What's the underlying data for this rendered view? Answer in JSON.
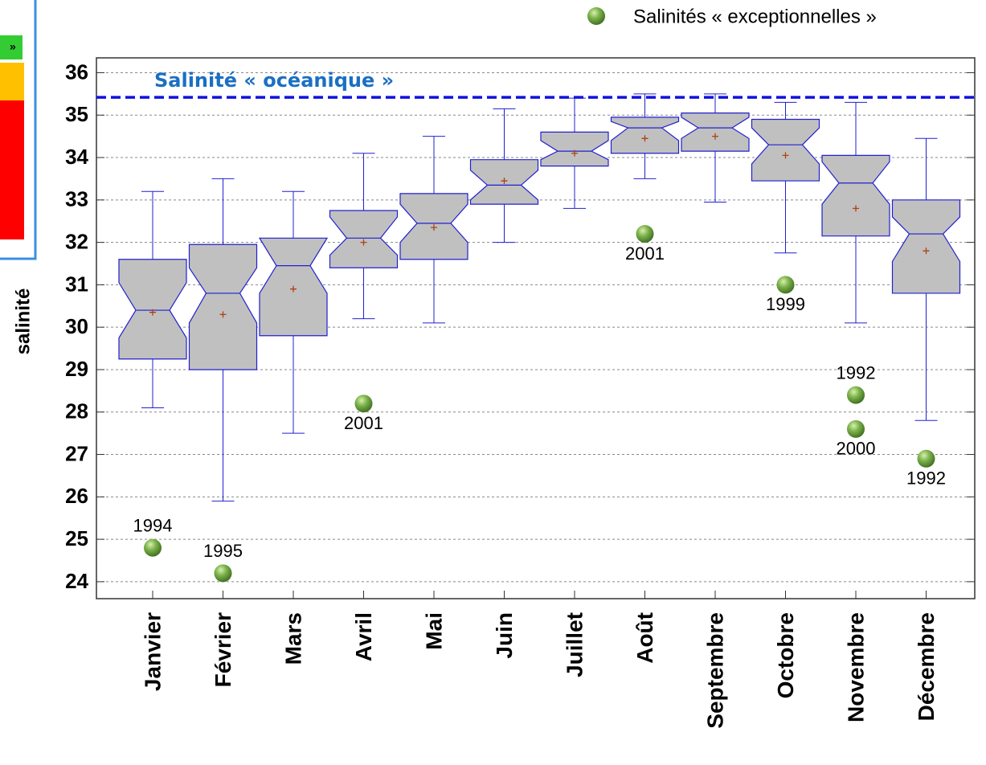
{
  "chart_data": {
    "type": "box",
    "ylabel": "salinité",
    "legend_label": "Salinités « exceptionnelles »",
    "side_panel_text": "»",
    "reference_line": {
      "value": 35.42,
      "label": "Salinité « océanique »",
      "color": "#1010e0"
    },
    "categories": [
      "Janvier",
      "Février",
      "Mars",
      "Avril",
      "Mai",
      "Juin",
      "Juillet",
      "Août",
      "Septembre",
      "Octobre",
      "Novembre",
      "Décembre"
    ],
    "whisker_high": [
      33.2,
      33.5,
      33.2,
      34.1,
      34.5,
      35.15,
      35.4,
      35.5,
      35.5,
      35.3,
      35.3,
      34.45
    ],
    "q3": [
      31.6,
      31.95,
      32.1,
      32.75,
      33.15,
      33.95,
      34.6,
      34.95,
      35.05,
      34.9,
      34.05,
      33.0
    ],
    "notch_high": [
      31.05,
      31.4,
      32.1,
      32.6,
      32.9,
      33.7,
      34.4,
      34.85,
      34.95,
      34.7,
      33.9,
      32.6
    ],
    "median": [
      30.4,
      30.8,
      31.45,
      32.1,
      32.45,
      33.35,
      34.15,
      34.7,
      34.7,
      34.3,
      33.4,
      32.2
    ],
    "notch_low": [
      29.75,
      30.1,
      30.8,
      31.7,
      32.0,
      33.0,
      33.95,
      34.4,
      34.45,
      33.85,
      32.9,
      31.55
    ],
    "q1": [
      29.25,
      29.0,
      29.8,
      31.4,
      31.6,
      32.9,
      33.8,
      34.1,
      34.15,
      33.45,
      32.15,
      30.8
    ],
    "whisker_low": [
      28.1,
      25.9,
      27.5,
      30.2,
      30.1,
      32.0,
      32.8,
      33.5,
      32.95,
      31.75,
      30.1,
      27.8
    ],
    "mean": [
      30.35,
      30.3,
      30.9,
      32.0,
      32.35,
      33.45,
      34.1,
      34.45,
      34.5,
      34.05,
      32.8,
      31.8
    ],
    "outliers": [
      [
        {
          "value": 24.8,
          "label": "1994"
        }
      ],
      [
        {
          "value": 24.2,
          "label": "1995"
        }
      ],
      [],
      [
        {
          "value": 28.2,
          "label": "2001"
        }
      ],
      [],
      [],
      [],
      [
        {
          "value": 32.2,
          "label": "2001"
        }
      ],
      [],
      [
        {
          "value": 31.0,
          "label": "1999"
        }
      ],
      [
        {
          "value": 28.4,
          "label": "1992"
        },
        {
          "value": 27.6,
          "label": "2000"
        }
      ],
      [
        {
          "value": 26.9,
          "label": "1992"
        }
      ]
    ],
    "box_color": "#c0c0c0",
    "line_color": "#2020d0",
    "mean_color": "#b04010",
    "ylim": [
      23.6,
      36.35
    ],
    "yticks": [
      24,
      25,
      26,
      27,
      28,
      29,
      30,
      31,
      32,
      33,
      34,
      35,
      36
    ],
    "grid": true
  }
}
